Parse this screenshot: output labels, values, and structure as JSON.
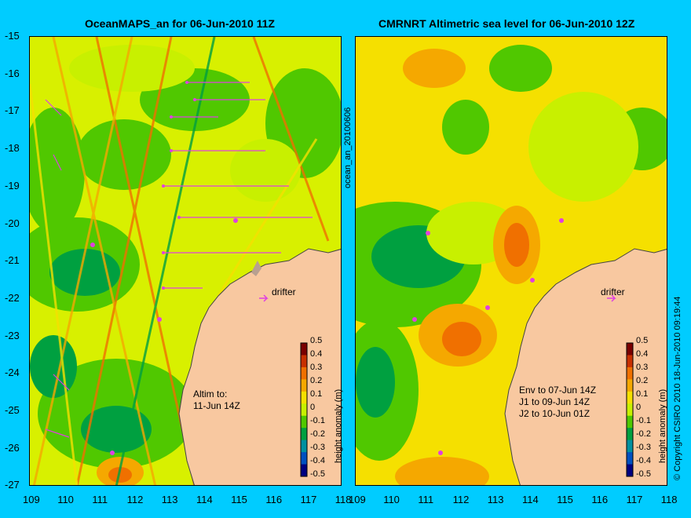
{
  "left_panel": {
    "title": "OceanMAPS_an for 06-Jun-2010 11Z",
    "note": "Altim to:\n11-Jun 14Z",
    "drifter": "drifter",
    "side_label": "ocean_an_20100606"
  },
  "right_panel": {
    "title": "CMRNRT Altimetric sea level  for 06-Jun-2010 12Z",
    "note": "Env to 07-Jun 14Z\nJ1 to 09-Jun 14Z\nJ2 to 10-Jun 01Z",
    "drifter": "drifter",
    "side_label": "© Copyright CSIRO 2010   18-Jun-2010 09:19:44"
  },
  "y_ticks": [
    "-15",
    "-16",
    "-17",
    "-18",
    "-19",
    "-20",
    "-21",
    "-22",
    "-23",
    "-24",
    "-25",
    "-26",
    "-27"
  ],
  "x_ticks": [
    "109",
    "110",
    "111",
    "112",
    "113",
    "114",
    "115",
    "116",
    "117",
    "118"
  ],
  "colorbar": {
    "label": "height anomaly (m)",
    "ticks": [
      "0.5",
      "0.4",
      "0.3",
      "0.2",
      "0.1",
      "0",
      "-0.1",
      "-0.2",
      "-0.3",
      "-0.4",
      "-0.5"
    ],
    "colors": [
      "#7a0000",
      "#c83000",
      "#f07000",
      "#f5a800",
      "#f5e000",
      "#c8f000",
      "#50c800",
      "#00a040",
      "#0090a0",
      "#0050c0",
      "#000080"
    ]
  },
  "colors": {
    "background": "#00ccff",
    "land": "#f8c8a0",
    "sea_base": "#d8f000"
  }
}
